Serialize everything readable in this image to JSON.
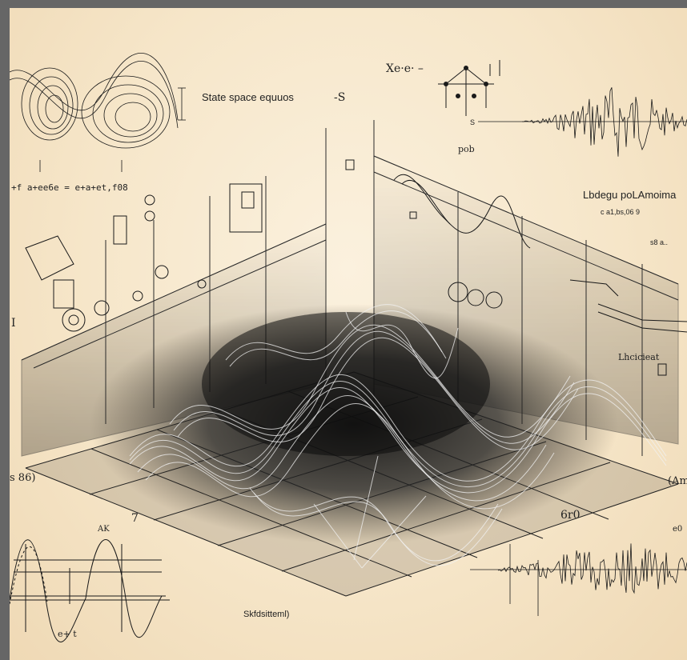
{
  "image": {
    "frame_color": "#666666",
    "paper_color": "#f6e6c9",
    "ink_color": "#1a1a1a"
  },
  "labels": {
    "state_space": "State space equuos",
    "state_space_mark": "-S",
    "top_formula": "Xe·e· –",
    "top_left_formula": "+f a+ee6e  =  e+a+et,f08",
    "pob": "pob",
    "legendre": "Lbdegu poLAmoima",
    "legendre_sub": "c a1,bs,06 9",
    "right_small": "s8 a..",
    "wave_s": "S",
    "coefficient": "Lhcicieat",
    "left_86": "s 86)",
    "right_am": "(Am",
    "bottom_center": "Skfdsitteml)",
    "gate_6": "6r0",
    "seven": "7",
    "bottom_left_t": "e+  t",
    "left_ak": "AK",
    "right_e0": "e0",
    "left_one": "I"
  }
}
